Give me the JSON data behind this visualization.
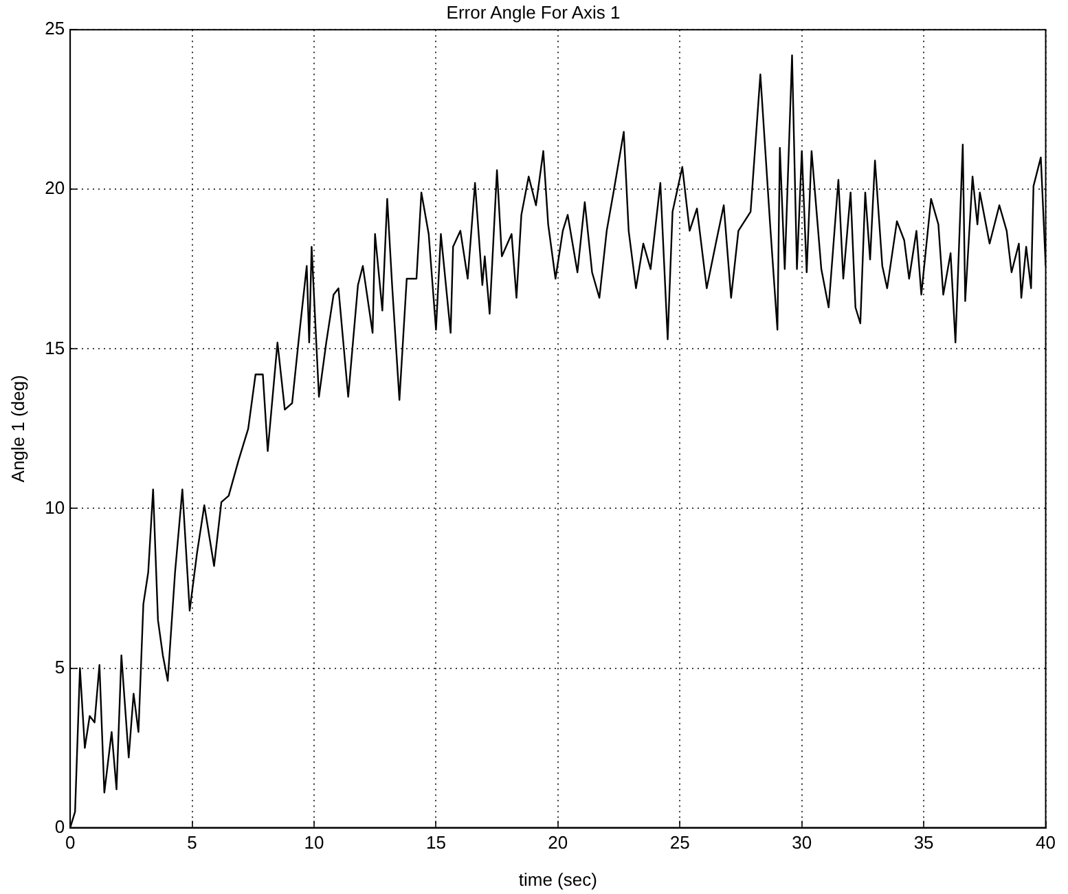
{
  "chart_data": {
    "type": "line",
    "title": "Error Angle For Axis 1",
    "xlabel": "time (sec)",
    "ylabel": "Angle 1 (deg)",
    "xlim": [
      0,
      40
    ],
    "ylim": [
      0,
      25
    ],
    "xticks": [
      0,
      5,
      10,
      15,
      20,
      25,
      30,
      35,
      40
    ],
    "yticks": [
      0,
      5,
      10,
      15,
      20,
      25
    ],
    "grid": true,
    "legend": false,
    "marker": "none",
    "line_style": "solid",
    "series": [
      {
        "color": "#000000",
        "x": [
          0,
          0.2,
          0.4,
          0.6,
          0.8,
          1.0,
          1.2,
          1.4,
          1.7,
          1.9,
          2.1,
          2.4,
          2.6,
          2.8,
          3.0,
          3.2,
          3.4,
          3.6,
          3.8,
          4.0,
          4.3,
          4.6,
          4.9,
          5.2,
          5.5,
          5.9,
          6.2,
          6.5,
          6.9,
          7.3,
          7.6,
          7.9,
          8.1,
          8.5,
          8.8,
          9.1,
          9.4,
          9.7,
          9.8,
          9.9,
          10.2,
          10.5,
          10.8,
          11.0,
          11.4,
          11.8,
          12.0,
          12.4,
          12.5,
          12.8,
          13.0,
          13.2,
          13.5,
          13.8,
          14.2,
          14.4,
          14.7,
          15.0,
          15.2,
          15.6,
          15.7,
          16.0,
          16.3,
          16.6,
          16.9,
          17.0,
          17.2,
          17.5,
          17.7,
          18.1,
          18.3,
          18.5,
          18.8,
          19.1,
          19.4,
          19.6,
          19.9,
          20.2,
          20.4,
          20.8,
          21.1,
          21.4,
          21.7,
          22.0,
          22.3,
          22.7,
          22.9,
          23.2,
          23.5,
          23.8,
          24.2,
          24.5,
          24.7,
          25.1,
          25.4,
          25.7,
          26.1,
          26.5,
          26.8,
          27.1,
          27.4,
          27.9,
          28.3,
          28.7,
          29.0,
          29.1,
          29.3,
          29.6,
          29.8,
          30.0,
          30.2,
          30.4,
          30.8,
          31.1,
          31.5,
          31.7,
          32.0,
          32.2,
          32.4,
          32.6,
          32.8,
          33.0,
          33.3,
          33.5,
          33.9,
          34.2,
          34.4,
          34.7,
          34.9,
          35.3,
          35.6,
          35.8,
          36.1,
          36.3,
          36.6,
          36.7,
          37.0,
          37.2,
          37.3,
          37.7,
          38.1,
          38.4,
          38.6,
          38.9,
          39.0,
          39.2,
          39.4,
          39.5,
          39.8,
          40
        ],
        "values": [
          0,
          0.5,
          5.0,
          2.5,
          3.5,
          3.3,
          5.1,
          1.1,
          3.0,
          1.2,
          5.4,
          2.2,
          4.2,
          3.0,
          7.0,
          8.0,
          10.6,
          6.5,
          5.4,
          4.6,
          8.0,
          10.6,
          6.8,
          8.6,
          10.1,
          8.2,
          10.2,
          10.4,
          11.5,
          12.5,
          14.2,
          14.2,
          11.8,
          15.2,
          13.1,
          13.3,
          15.5,
          17.6,
          15.2,
          18.2,
          13.5,
          15.2,
          16.7,
          16.9,
          13.5,
          17.0,
          17.6,
          15.5,
          18.6,
          16.2,
          19.7,
          17.0,
          13.4,
          17.2,
          17.2,
          19.9,
          18.6,
          15.6,
          18.6,
          15.5,
          18.2,
          18.7,
          17.2,
          20.2,
          17.0,
          17.9,
          16.1,
          20.6,
          17.9,
          18.6,
          16.6,
          19.2,
          20.4,
          19.5,
          21.2,
          18.9,
          17.2,
          18.7,
          19.2,
          17.4,
          19.6,
          17.4,
          16.6,
          18.7,
          20.0,
          21.8,
          18.7,
          16.9,
          18.3,
          17.5,
          20.2,
          15.3,
          19.3,
          20.7,
          18.7,
          19.4,
          16.9,
          18.4,
          19.5,
          16.6,
          18.7,
          19.3,
          23.6,
          18.9,
          15.6,
          21.3,
          17.5,
          24.2,
          17.5,
          21.2,
          17.4,
          21.2,
          17.5,
          16.3,
          20.3,
          17.2,
          19.9,
          16.3,
          15.8,
          19.9,
          17.8,
          20.9,
          17.6,
          16.9,
          19.0,
          18.4,
          17.2,
          18.7,
          16.7,
          19.7,
          18.9,
          16.7,
          18.0,
          15.2,
          21.4,
          16.5,
          20.4,
          18.9,
          19.9,
          18.3,
          19.5,
          18.7,
          17.4,
          18.3,
          16.6,
          18.2,
          16.9,
          20.1,
          21.0,
          17.6
        ]
      }
    ]
  }
}
